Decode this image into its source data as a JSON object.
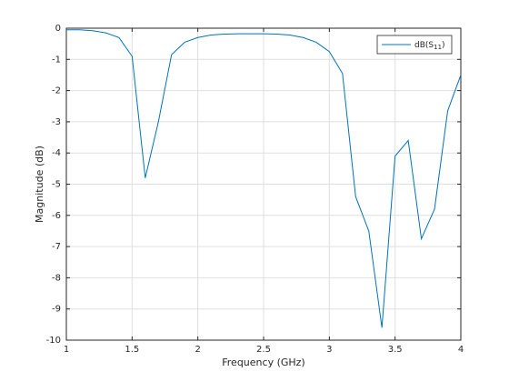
{
  "chart_data": {
    "type": "line",
    "x_label": "Frequency (GHz)",
    "y_label": "Magnitude (dB)",
    "x": [
      1.0,
      1.1,
      1.2,
      1.3,
      1.4,
      1.5,
      1.6,
      1.7,
      1.8,
      1.9,
      2.0,
      2.1,
      2.2,
      2.3,
      2.4,
      2.5,
      2.6,
      2.7,
      2.8,
      2.9,
      3.0,
      3.1,
      3.2,
      3.3,
      3.4,
      3.5,
      3.6,
      3.7,
      3.8,
      3.9,
      4.0
    ],
    "series": [
      {
        "name": "dB(S11)",
        "color": "#0072bd",
        "values": [
          -0.05,
          -0.05,
          -0.08,
          -0.15,
          -0.3,
          -0.9,
          -4.8,
          -3.0,
          -0.85,
          -0.45,
          -0.3,
          -0.22,
          -0.19,
          -0.18,
          -0.18,
          -0.18,
          -0.19,
          -0.22,
          -0.3,
          -0.45,
          -0.75,
          -1.45,
          -5.4,
          -6.5,
          -9.6,
          -4.1,
          -3.6,
          -6.75,
          -5.8,
          -2.65,
          -1.5
        ]
      }
    ],
    "xlim": [
      1,
      4
    ],
    "xticks": [
      1,
      1.5,
      2,
      2.5,
      3,
      3.5,
      4
    ],
    "ylim": [
      -10,
      0
    ],
    "yticks": [
      -10,
      -9,
      -8,
      -7,
      -6,
      -5,
      -4,
      -3,
      -2,
      -1,
      0
    ],
    "grid": true,
    "legend": "top-right"
  }
}
